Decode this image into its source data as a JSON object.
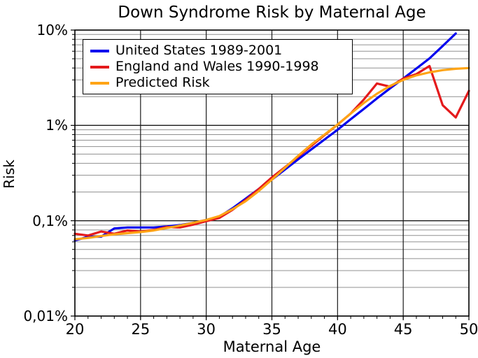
{
  "chart_data": {
    "type": "line",
    "title": "Down Syndrome Risk by Maternal Age",
    "xlabel": "Maternal Age",
    "ylabel": "Risk",
    "x_scale": "linear",
    "y_scale": "log",
    "xlim": [
      20,
      50
    ],
    "ylim_percent": [
      0.01,
      10
    ],
    "grid": "major and log-minor gridlines on",
    "legend_position": "upper left",
    "x_ticks": [
      20,
      25,
      30,
      35,
      40,
      45,
      50
    ],
    "y_ticks": [
      {
        "value": 10,
        "label": "10%"
      },
      {
        "value": 1,
        "label": "1%"
      },
      {
        "value": 0.1,
        "label": "0,1%"
      },
      {
        "value": 0.01,
        "label": "0,01%"
      }
    ],
    "colors": {
      "us_line": "#0000ee",
      "england_wales_line": "#e41a1c",
      "predicted_line": "#ffa415",
      "major_grid": "#1a1a1a",
      "minor_grid": "#909090",
      "frame": "#000000"
    },
    "series": [
      {
        "name": "United States 1989-2001",
        "color_key": "us_line",
        "x": [
          20,
          21,
          22,
          23,
          24,
          25,
          26,
          27,
          28,
          29,
          30,
          31,
          32,
          33,
          34,
          35,
          36,
          37,
          38,
          39,
          40,
          41,
          42,
          43,
          44,
          45,
          46,
          47,
          48,
          49
        ],
        "y": [
          0.062,
          0.068,
          0.068,
          0.083,
          0.085,
          0.085,
          0.085,
          0.087,
          0.09,
          0.095,
          0.102,
          0.11,
          0.135,
          0.17,
          0.215,
          0.27,
          0.345,
          0.44,
          0.56,
          0.71,
          0.9,
          1.16,
          1.49,
          1.92,
          2.45,
          3.1,
          3.95,
          5.05,
          6.8,
          9.2
        ]
      },
      {
        "name": "England and Wales 1990-1998",
        "color_key": "england_wales_line",
        "x": [
          20,
          21,
          22,
          23,
          24,
          25,
          26,
          27,
          28,
          29,
          30,
          31,
          32,
          33,
          34,
          35,
          36,
          37,
          38,
          39,
          40,
          41,
          42,
          43,
          44,
          45,
          46,
          47,
          48,
          49,
          50
        ],
        "y": [
          0.073,
          0.07,
          0.077,
          0.073,
          0.079,
          0.077,
          0.08,
          0.086,
          0.085,
          0.091,
          0.099,
          0.107,
          0.13,
          0.165,
          0.215,
          0.285,
          0.365,
          0.47,
          0.61,
          0.79,
          1.02,
          1.33,
          1.87,
          2.75,
          2.55,
          3.1,
          3.45,
          4.2,
          1.63,
          1.21,
          2.3
        ]
      },
      {
        "name": "Predicted Risk",
        "color_key": "predicted_line",
        "x": [
          20,
          21,
          22,
          23,
          24,
          25,
          26,
          27,
          28,
          29,
          30,
          31,
          32,
          33,
          34,
          35,
          36,
          37,
          38,
          39,
          40,
          41,
          42,
          43,
          44,
          45,
          46,
          47,
          48,
          49,
          50
        ],
        "y": [
          0.064,
          0.066,
          0.069,
          0.072,
          0.074,
          0.076,
          0.079,
          0.084,
          0.089,
          0.095,
          0.102,
          0.112,
          0.132,
          0.16,
          0.205,
          0.27,
          0.36,
          0.48,
          0.63,
          0.8,
          1.02,
          1.33,
          1.72,
          2.15,
          2.6,
          3.0,
          3.35,
          3.6,
          3.8,
          3.92,
          4.0
        ]
      }
    ]
  }
}
